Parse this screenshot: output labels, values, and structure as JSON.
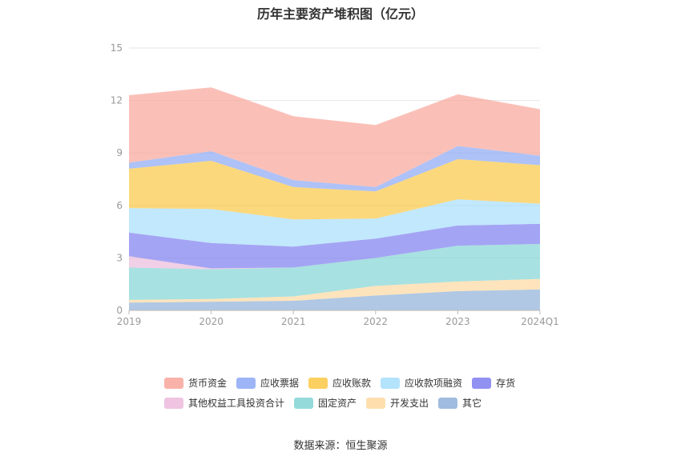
{
  "chart_data": {
    "type": "area",
    "stacked": true,
    "title": "历年主要资产堆积图（亿元）",
    "x": [
      "2019",
      "2020",
      "2021",
      "2022",
      "2023",
      "2024Q1"
    ],
    "yticks": [
      "0",
      "3",
      "6",
      "9",
      "12",
      "15"
    ],
    "ylim": [
      0,
      15
    ],
    "series": [
      {
        "name": "其它",
        "color": "#8fb0d9",
        "values": [
          0.45,
          0.5,
          0.55,
          0.85,
          1.1,
          1.2
        ]
      },
      {
        "name": "开发支出",
        "color": "#fdd9a0",
        "values": [
          0.15,
          0.15,
          0.25,
          0.55,
          0.55,
          0.6
        ]
      },
      {
        "name": "固定资产",
        "color": "#83d4d4",
        "values": [
          1.85,
          1.7,
          1.65,
          1.6,
          2.05,
          2.0
        ]
      },
      {
        "name": "其他权益工具投资合计",
        "color": "#ebbadc",
        "values": [
          0.65,
          0.05,
          0.0,
          0.0,
          0.0,
          0.0
        ]
      },
      {
        "name": "存货",
        "color": "#7e7ef0",
        "values": [
          1.35,
          1.45,
          1.2,
          1.1,
          1.15,
          1.15
        ]
      },
      {
        "name": "应收款项融资",
        "color": "#a7defb",
        "values": [
          1.4,
          1.95,
          1.55,
          1.15,
          1.5,
          1.15
        ]
      },
      {
        "name": "应收账款",
        "color": "#fbc844",
        "values": [
          2.25,
          2.75,
          1.85,
          1.55,
          2.3,
          2.2
        ]
      },
      {
        "name": "应收票据",
        "color": "#8ca8f4",
        "values": [
          0.35,
          0.55,
          0.4,
          0.25,
          0.75,
          0.55
        ]
      },
      {
        "name": "货币资金",
        "color": "#f8a59a",
        "values": [
          3.85,
          3.65,
          3.65,
          3.55,
          2.95,
          2.65
        ]
      }
    ],
    "legend_order": [
      "货币资金",
      "应收票据",
      "应收账款",
      "应收款项融资",
      "存货",
      "其他权益工具投资合计",
      "固定资产",
      "开发支出",
      "其它"
    ],
    "legend_placement": "bottom",
    "grid": true
  },
  "source_text": "数据来源：恒生聚源"
}
